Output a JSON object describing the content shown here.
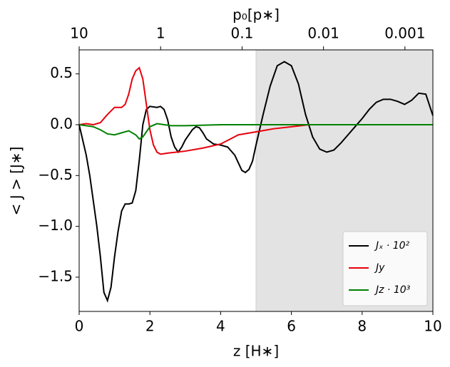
{
  "chart_data": {
    "type": "line",
    "xlabel": "z [H∗]",
    "ylabel": "< J > [J∗]",
    "x2label": "p₀[p∗]",
    "xlim": [
      0,
      10
    ],
    "xticks": [
      0,
      2,
      4,
      6,
      8,
      10
    ],
    "ylim": [
      -1.837,
      0.736
    ],
    "yticks": [
      {
        "value": 0.5,
        "label": "0.5"
      },
      {
        "value": 0,
        "label": "0.0"
      },
      {
        "value": -0.5,
        "label": "−0.5"
      },
      {
        "value": -1,
        "label": "−1.0"
      },
      {
        "value": -1.5,
        "label": "−1.5"
      }
    ],
    "x2scale": "log",
    "x2lim": [
      10,
      0.000454
    ],
    "x2ticks": [
      10,
      1,
      0.1,
      0.01,
      0.001
    ],
    "shade": [
      5,
      10
    ],
    "shade_color": "#e3e3e3",
    "legend": "lower right",
    "series": [
      {
        "name": "Jₓ · 10²",
        "color": "#000000",
        "x": [
          0,
          0.1,
          0.2,
          0.3,
          0.4,
          0.5,
          0.6,
          0.7,
          0.8,
          0.9,
          1.0,
          1.1,
          1.2,
          1.3,
          1.4,
          1.5,
          1.6,
          1.7,
          1.8,
          1.9,
          2.0,
          2.2,
          2.3,
          2.4,
          2.5,
          2.6,
          2.7,
          2.8,
          2.9,
          3.0,
          3.2,
          3.3,
          3.4,
          3.5,
          3.6,
          3.8,
          4.0,
          4.2,
          4.4,
          4.6,
          4.7,
          4.8,
          4.9,
          5.0,
          5.2,
          5.4,
          5.6,
          5.8,
          6.0,
          6.2,
          6.4,
          6.6,
          6.8,
          7.0,
          7.2,
          7.4,
          7.6,
          7.8,
          8.0,
          8.2,
          8.4,
          8.6,
          8.8,
          9.0,
          9.2,
          9.4,
          9.6,
          9.8,
          10.0
        ],
        "values": [
          0,
          -0.15,
          -0.3,
          -0.5,
          -0.75,
          -1.0,
          -1.3,
          -1.65,
          -1.73,
          -1.6,
          -1.3,
          -1.05,
          -0.85,
          -0.78,
          -0.78,
          -0.77,
          -0.65,
          -0.35,
          0,
          0.15,
          0.18,
          0.17,
          0.18,
          0.15,
          0.05,
          -0.12,
          -0.22,
          -0.27,
          -0.22,
          -0.15,
          -0.05,
          -0.02,
          -0.03,
          -0.08,
          -0.14,
          -0.19,
          -0.2,
          -0.22,
          -0.3,
          -0.45,
          -0.47,
          -0.44,
          -0.36,
          -0.2,
          0.1,
          0.38,
          0.58,
          0.62,
          0.58,
          0.4,
          0.1,
          -0.12,
          -0.24,
          -0.27,
          -0.25,
          -0.18,
          -0.1,
          -0.02,
          0.06,
          0.15,
          0.22,
          0.25,
          0.25,
          0.23,
          0.2,
          0.24,
          0.31,
          0.3,
          0.09
        ]
      },
      {
        "name": "Jy",
        "color": "#e8000b",
        "x": [
          0,
          0.2,
          0.4,
          0.6,
          0.8,
          1.0,
          1.2,
          1.3,
          1.4,
          1.5,
          1.6,
          1.7,
          1.8,
          1.9,
          2.0,
          2.1,
          2.2,
          2.3,
          2.5,
          3.0,
          3.5,
          4.0,
          4.5,
          5.0,
          5.5,
          6.0,
          6.5,
          8.0,
          10.0
        ],
        "values": [
          0,
          0.01,
          0,
          0.02,
          0.1,
          0.17,
          0.17,
          0.2,
          0.3,
          0.45,
          0.53,
          0.56,
          0.45,
          0.2,
          -0.05,
          -0.2,
          -0.27,
          -0.29,
          -0.28,
          -0.26,
          -0.23,
          -0.19,
          -0.1,
          -0.07,
          -0.04,
          -0.02,
          0,
          0,
          0
        ]
      },
      {
        "name": "Jz · 10³",
        "color": "#008000",
        "x": [
          0,
          0.4,
          0.6,
          0.8,
          1.0,
          1.2,
          1.4,
          1.6,
          1.7,
          1.8,
          2.0,
          2.2,
          2.6,
          3.0,
          4.0,
          10.0
        ],
        "values": [
          0,
          -0.02,
          -0.05,
          -0.09,
          -0.1,
          -0.08,
          -0.06,
          -0.1,
          -0.14,
          -0.12,
          -0.02,
          0.01,
          -0.01,
          -0.01,
          0,
          0
        ]
      }
    ]
  }
}
